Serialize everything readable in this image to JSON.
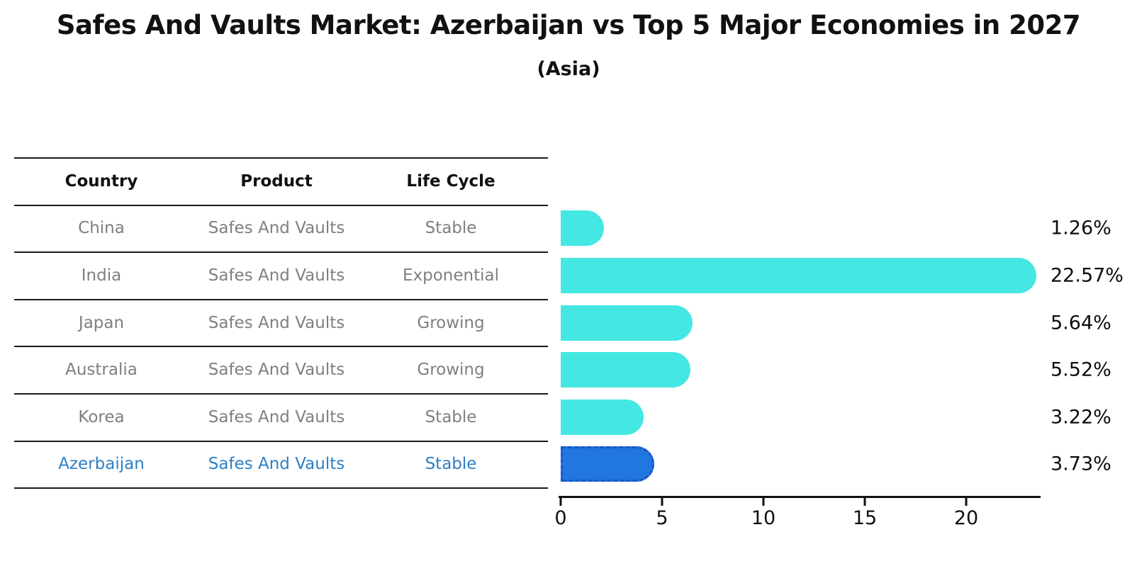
{
  "header": {
    "title": "Safes And Vaults Market: Azerbaijan vs Top 5 Major Economies in 2027",
    "subtitle": "(Asia)"
  },
  "table": {
    "headers": [
      "Country",
      "Product",
      "Life Cycle"
    ],
    "rows": [
      {
        "country": "China",
        "product": "Safes And Vaults",
        "life_cycle": "Stable",
        "value": 1.26,
        "label": "1.26%",
        "highlight": false
      },
      {
        "country": "India",
        "product": "Safes And Vaults",
        "life_cycle": "Exponential",
        "value": 22.57,
        "label": "22.57%",
        "highlight": false
      },
      {
        "country": "Japan",
        "product": "Safes And Vaults",
        "life_cycle": "Growing",
        "value": 5.64,
        "label": "5.64%",
        "highlight": false
      },
      {
        "country": "Australia",
        "product": "Safes And Vaults",
        "life_cycle": "Growing",
        "value": 5.52,
        "label": "5.52%",
        "highlight": false
      },
      {
        "country": "Korea",
        "product": "Safes And Vaults",
        "life_cycle": "Stable",
        "value": 3.22,
        "label": "3.22%",
        "highlight": false
      },
      {
        "country": "Azerbaijan",
        "product": "Safes And Vaults",
        "life_cycle": "Stable",
        "value": 3.73,
        "label": "3.73%",
        "highlight": true
      }
    ]
  },
  "chart_data": {
    "type": "bar",
    "orientation": "horizontal",
    "title": "Safes And Vaults Market: Azerbaijan vs Top 5 Major Economies in 2027",
    "subtitle": "(Asia)",
    "categories": [
      "China",
      "India",
      "Japan",
      "Australia",
      "Korea",
      "Azerbaijan"
    ],
    "values": [
      1.26,
      22.57,
      5.64,
      5.52,
      3.22,
      3.73
    ],
    "data_labels": [
      "1.26%",
      "22.57%",
      "5.64%",
      "5.52%",
      "3.22%",
      "3.73%"
    ],
    "highlight_index": 5,
    "xticks": [
      0,
      5,
      10,
      15,
      20
    ],
    "xlim": [
      0,
      23.7
    ],
    "grid": false,
    "legend": "none",
    "units": "percent"
  },
  "colors": {
    "bar": "#45e7e2",
    "highlight_bar": "#2177df",
    "highlight_border": "#1857c8",
    "highlight_text": "#2d7fc4",
    "table_text": "#7f7f7f",
    "axis": "#111111"
  }
}
